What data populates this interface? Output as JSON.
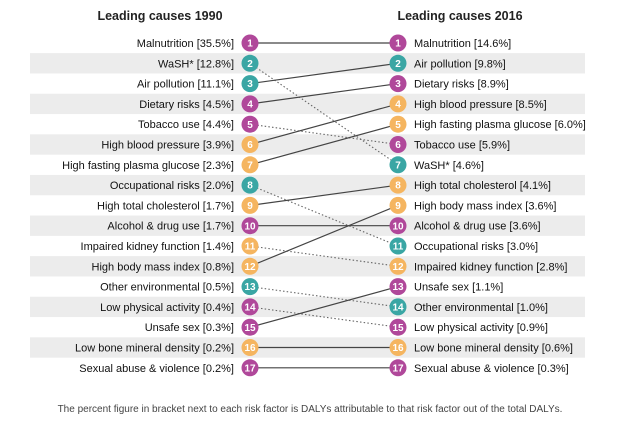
{
  "header_left": "Leading causes 1990",
  "header_right": "Leading causes 2016",
  "footnote": "The percent figure in bracket next to each risk factor is DALYs attributable to that risk factor out of the total DALYs.",
  "colors": {
    "purple": "#b0489a",
    "teal": "#3aa6a4",
    "orange": "#f5b560",
    "stripe": "#ececec",
    "solid_line": "#444444",
    "dotted_line": "#666666"
  },
  "left_items": [
    {
      "rank": "1",
      "label": "Malnutrition [35.5%]",
      "color": "purple"
    },
    {
      "rank": "2",
      "label": "WaSH* [12.8%]",
      "color": "teal"
    },
    {
      "rank": "3",
      "label": "Air pollution [11.1%]",
      "color": "teal"
    },
    {
      "rank": "4",
      "label": "Dietary risks [4.5%]",
      "color": "purple"
    },
    {
      "rank": "5",
      "label": "Tobacco use [4.4%]",
      "color": "purple"
    },
    {
      "rank": "6",
      "label": "High blood pressure [3.9%]",
      "color": "orange"
    },
    {
      "rank": "7",
      "label": "High fasting plasma glucose [2.3%]",
      "color": "orange"
    },
    {
      "rank": "8",
      "label": "Occupational risks [2.0%]",
      "color": "teal"
    },
    {
      "rank": "9",
      "label": "High total cholesterol [1.7%]",
      "color": "orange"
    },
    {
      "rank": "10",
      "label": "Alcohol & drug use [1.7%]",
      "color": "purple"
    },
    {
      "rank": "11",
      "label": "Impaired kidney function [1.4%]",
      "color": "orange"
    },
    {
      "rank": "12",
      "label": "High body mass index [0.8%]",
      "color": "orange"
    },
    {
      "rank": "13",
      "label": "Other environmental [0.5%]",
      "color": "teal"
    },
    {
      "rank": "14",
      "label": "Low physical activity [0.4%]",
      "color": "purple"
    },
    {
      "rank": "15",
      "label": "Unsafe sex [0.3%]",
      "color": "purple"
    },
    {
      "rank": "16",
      "label": "Low bone mineral density [0.2%]",
      "color": "orange"
    },
    {
      "rank": "17",
      "label": "Sexual abuse & violence [0.2%]",
      "color": "purple"
    }
  ],
  "right_items": [
    {
      "rank": "1",
      "label": "Malnutrition [14.6%]",
      "color": "purple"
    },
    {
      "rank": "2",
      "label": "Air pollution [9.8%]",
      "color": "teal"
    },
    {
      "rank": "3",
      "label": "Dietary risks [8.9%]",
      "color": "purple"
    },
    {
      "rank": "4",
      "label": "High blood pressure [8.5%]",
      "color": "orange"
    },
    {
      "rank": "5",
      "label": "High fasting plasma glucose [6.0%]",
      "color": "orange"
    },
    {
      "rank": "6",
      "label": "Tobacco use [5.9%]",
      "color": "purple"
    },
    {
      "rank": "7",
      "label": "WaSH* [4.6%]",
      "color": "teal"
    },
    {
      "rank": "8",
      "label": "High total cholesterol [4.1%]",
      "color": "orange"
    },
    {
      "rank": "9",
      "label": "High body mass index [3.6%]",
      "color": "orange"
    },
    {
      "rank": "10",
      "label": "Alcohol & drug use [3.6%]",
      "color": "purple"
    },
    {
      "rank": "11",
      "label": "Occupational risks [3.0%]",
      "color": "teal"
    },
    {
      "rank": "12",
      "label": "Impaired kidney function [2.8%]",
      "color": "orange"
    },
    {
      "rank": "13",
      "label": "Unsafe sex [1.1%]",
      "color": "purple"
    },
    {
      "rank": "14",
      "label": "Other environmental [1.0%]",
      "color": "teal"
    },
    {
      "rank": "15",
      "label": "Low physical activity [0.9%]",
      "color": "purple"
    },
    {
      "rank": "16",
      "label": "Low bone mineral density [0.6%]",
      "color": "orange"
    },
    {
      "rank": "17",
      "label": "Sexual abuse & violence [0.3%]",
      "color": "purple"
    }
  ],
  "links": [
    {
      "from": 1,
      "to": 1,
      "style": "solid"
    },
    {
      "from": 2,
      "to": 7,
      "style": "dotted"
    },
    {
      "from": 3,
      "to": 2,
      "style": "solid"
    },
    {
      "from": 4,
      "to": 3,
      "style": "solid"
    },
    {
      "from": 5,
      "to": 6,
      "style": "dotted"
    },
    {
      "from": 6,
      "to": 4,
      "style": "solid"
    },
    {
      "from": 7,
      "to": 5,
      "style": "solid"
    },
    {
      "from": 8,
      "to": 11,
      "style": "dotted"
    },
    {
      "from": 9,
      "to": 8,
      "style": "solid"
    },
    {
      "from": 10,
      "to": 10,
      "style": "solid"
    },
    {
      "from": 11,
      "to": 12,
      "style": "dotted"
    },
    {
      "from": 12,
      "to": 9,
      "style": "solid"
    },
    {
      "from": 13,
      "to": 14,
      "style": "dotted"
    },
    {
      "from": 14,
      "to": 15,
      "style": "dotted"
    },
    {
      "from": 15,
      "to": 13,
      "style": "solid"
    },
    {
      "from": 16,
      "to": 16,
      "style": "solid"
    },
    {
      "from": 17,
      "to": 17,
      "style": "solid"
    }
  ]
}
